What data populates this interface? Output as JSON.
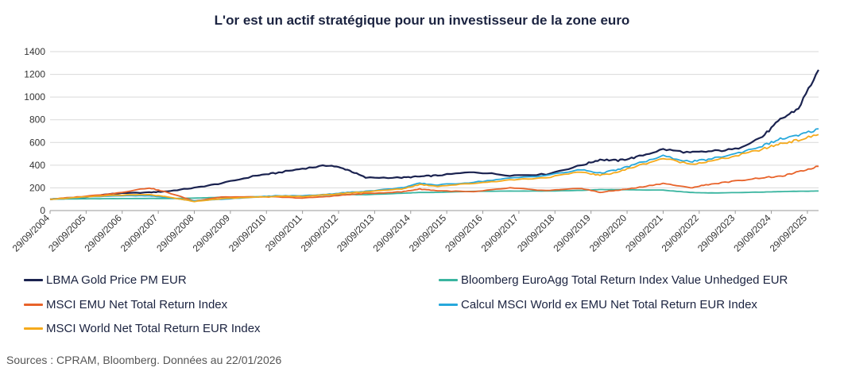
{
  "chart_data": {
    "type": "line",
    "title": "L'or est un actif stratégique pour un investisseur de la zone euro",
    "xlabel": "",
    "ylabel": "",
    "ylim": [
      0,
      1400
    ],
    "yticks": [
      0,
      200,
      400,
      600,
      800,
      1000,
      1200,
      1400
    ],
    "grid": true,
    "legend_position": "bottom",
    "x_start_year": 2004.75,
    "x_end_year": 2026.06,
    "x_tick_labels": [
      "29/09/2004",
      "29/09/2005",
      "29/09/2006",
      "29/09/2007",
      "29/09/2008",
      "29/09/2009",
      "29/09/2010",
      "29/09/2011",
      "29/09/2012",
      "29/09/2013",
      "29/09/2014",
      "29/09/2015",
      "29/09/2016",
      "29/09/2017",
      "29/09/2018",
      "29/09/2019",
      "29/09/2020",
      "29/09/2021",
      "29/09/2022",
      "29/09/2023",
      "29/09/2024",
      "29/09/2025"
    ],
    "x": [
      2004.75,
      2005.5,
      2006.5,
      2007.5,
      2008.0,
      2008.75,
      2009.5,
      2010.5,
      2011.0,
      2011.75,
      2012.5,
      2013.0,
      2013.5,
      2014.5,
      2015.0,
      2015.5,
      2016.5,
      2017.5,
      2018.5,
      2019.5,
      2020.0,
      2020.5,
      2021.0,
      2021.75,
      2022.5,
      2023.0,
      2023.75,
      2024.5,
      2025.0,
      2025.5,
      2026.06
    ],
    "series": [
      {
        "name": "LBMA Gold Price PM EUR",
        "color": "#1b2350",
        "values": [
          100,
          110,
          150,
          160,
          170,
          200,
          240,
          310,
          330,
          370,
          400,
          360,
          290,
          290,
          300,
          310,
          340,
          310,
          320,
          400,
          450,
          440,
          470,
          540,
          510,
          520,
          540,
          650,
          800,
          900,
          1240
        ]
      },
      {
        "name": "Bloomberg EuroAgg Total Return Index Value Unhedged EUR",
        "color": "#3ab5a0",
        "values": [
          100,
          103,
          105,
          107,
          106,
          110,
          117,
          122,
          124,
          130,
          138,
          140,
          140,
          152,
          160,
          160,
          170,
          172,
          172,
          178,
          185,
          185,
          182,
          180,
          160,
          155,
          158,
          163,
          167,
          170,
          172
        ]
      },
      {
        "name": "MSCI EMU Net Total Return Index",
        "color": "#e8632a",
        "values": [
          100,
          120,
          150,
          200,
          160,
          85,
          120,
          120,
          120,
          110,
          125,
          140,
          150,
          165,
          190,
          175,
          165,
          200,
          175,
          195,
          160,
          180,
          200,
          240,
          200,
          230,
          260,
          290,
          300,
          340,
          390
        ]
      },
      {
        "name": "Calcul MSCI World ex EMU Net Total Return EUR Index",
        "color": "#27a8db",
        "values": [
          100,
          115,
          130,
          130,
          115,
          85,
          100,
          120,
          130,
          130,
          145,
          160,
          170,
          200,
          240,
          225,
          250,
          285,
          310,
          360,
          330,
          360,
          410,
          480,
          430,
          450,
          500,
          570,
          630,
          660,
          720
        ]
      },
      {
        "name": "MSCI World Net Total Return EUR Index",
        "color": "#f5aa1c",
        "values": [
          100,
          115,
          135,
          140,
          120,
          80,
          105,
          120,
          125,
          125,
          140,
          155,
          165,
          190,
          230,
          215,
          240,
          270,
          290,
          340,
          310,
          340,
          390,
          460,
          410,
          430,
          480,
          540,
          590,
          620,
          670
        ]
      }
    ],
    "annotation": "Sources : CPRAM, Bloomberg. Données au 22/01/2026"
  }
}
